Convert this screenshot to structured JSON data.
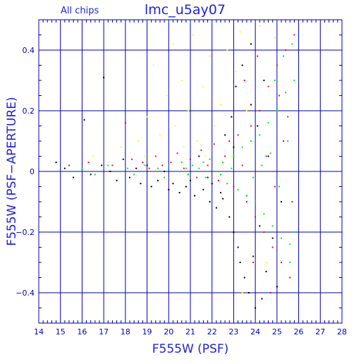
{
  "chart_data": {
    "type": "scatter",
    "title": "lmc_u5ay07",
    "subtitle": "All chips",
    "xlabel": "F555W (PSF)",
    "ylabel": "F555W (PSF−APERTURE)",
    "xlim": [
      14,
      28
    ],
    "ylim": [
      -0.5,
      0.5
    ],
    "x_ticks": [
      "14",
      "15",
      "16",
      "17",
      "18",
      "19",
      "20",
      "21",
      "22",
      "23",
      "24",
      "25",
      "26",
      "27",
      "28"
    ],
    "y_ticks": [
      "−0.4",
      "−0.2",
      "0",
      "0.2",
      "0.4"
    ],
    "grid": true,
    "series": [
      {
        "color": "#000000",
        "points": [
          [
            14.8,
            0.03
          ],
          [
            15.2,
            0.01
          ],
          [
            15.6,
            -0.02
          ],
          [
            16.1,
            0.17
          ],
          [
            16.4,
            -0.01
          ],
          [
            16.9,
            0.02
          ],
          [
            17.0,
            0.31
          ],
          [
            17.3,
            0.0
          ],
          [
            17.6,
            -0.03
          ],
          [
            17.9,
            0.04
          ],
          [
            18.2,
            -0.02
          ],
          [
            18.5,
            0.01
          ],
          [
            18.7,
            -0.04
          ],
          [
            19.0,
            0.02
          ],
          [
            19.2,
            -0.05
          ],
          [
            19.5,
            -0.03
          ],
          [
            19.8,
            0.0
          ],
          [
            20.0,
            -0.06
          ],
          [
            20.2,
            -0.04
          ],
          [
            20.5,
            -0.07
          ],
          [
            20.8,
            -0.05
          ],
          [
            21.0,
            -0.03
          ],
          [
            21.2,
            -0.08
          ],
          [
            21.4,
            0.05
          ],
          [
            21.6,
            -0.06
          ],
          [
            21.9,
            -0.1
          ],
          [
            22.0,
            -0.04
          ],
          [
            22.2,
            -0.12
          ],
          [
            22.4,
            -0.07
          ],
          [
            22.6,
            0.12
          ],
          [
            22.8,
            -0.15
          ],
          [
            22.9,
            0.18
          ],
          [
            23.0,
            -0.2
          ],
          [
            23.1,
            0.28
          ],
          [
            23.2,
            -0.25
          ],
          [
            23.3,
            -0.3
          ],
          [
            23.4,
            0.35
          ],
          [
            23.5,
            -0.35
          ],
          [
            23.6,
            -0.08
          ],
          [
            23.7,
            -0.4
          ],
          [
            23.8,
            0.22
          ],
          [
            23.9,
            -0.28
          ],
          [
            24.0,
            -0.45
          ],
          [
            24.1,
            0.15
          ],
          [
            24.2,
            -0.18
          ],
          [
            24.3,
            -0.42
          ],
          [
            24.5,
            -0.33
          ],
          [
            24.6,
            0.05
          ],
          [
            24.8,
            -0.22
          ],
          [
            25.0,
            -0.38
          ],
          [
            25.2,
            -0.1
          ],
          [
            22.5,
            -0.09
          ],
          [
            21.8,
            -0.02
          ],
          [
            20.9,
            -0.01
          ],
          [
            23.8,
            0.42
          ],
          [
            24.4,
            0.3
          ],
          [
            23.0,
            0.08
          ]
        ]
      },
      {
        "color": "#ee1111",
        "points": [
          [
            15.4,
            0.02
          ],
          [
            16.3,
            0.03
          ],
          [
            17.4,
            0.02
          ],
          [
            18.0,
            0.16
          ],
          [
            18.3,
            0.04
          ],
          [
            18.8,
            0.03
          ],
          [
            19.1,
            0.01
          ],
          [
            19.4,
            0.05
          ],
          [
            19.7,
            0.02
          ],
          [
            20.1,
            0.03
          ],
          [
            20.4,
            0.06
          ],
          [
            20.7,
            0.01
          ],
          [
            21.0,
            0.04
          ],
          [
            21.3,
            -0.02
          ],
          [
            21.5,
            0.07
          ],
          [
            21.8,
            0.02
          ],
          [
            22.1,
            0.09
          ],
          [
            22.3,
            -0.03
          ],
          [
            22.6,
            0.05
          ],
          [
            22.8,
            0.1
          ],
          [
            23.0,
            -0.05
          ],
          [
            23.2,
            0.12
          ],
          [
            23.4,
            0.02
          ],
          [
            23.6,
            -0.1
          ],
          [
            23.8,
            0.15
          ],
          [
            24.0,
            -0.15
          ],
          [
            24.2,
            0.2
          ],
          [
            24.4,
            -0.2
          ],
          [
            24.6,
            0.28
          ],
          [
            24.8,
            -0.25
          ],
          [
            25.0,
            0.35
          ],
          [
            25.2,
            -0.3
          ],
          [
            25.4,
            0.4
          ],
          [
            25.6,
            -0.35
          ],
          [
            25.8,
            0.45
          ],
          [
            24.5,
            0.05
          ],
          [
            24.9,
            -0.05
          ],
          [
            25.3,
            0.1
          ],
          [
            25.7,
            -0.1
          ],
          [
            23.5,
            0.3
          ],
          [
            24.1,
            0.38
          ],
          [
            25.1,
            0.25
          ],
          [
            25.5,
            0.18
          ],
          [
            24.7,
            -0.4
          ],
          [
            23.9,
            -0.3
          ]
        ]
      },
      {
        "color": "#ffff00",
        "points": [
          [
            16.5,
            0.05
          ],
          [
            17.8,
            0.08
          ],
          [
            18.6,
            0.1
          ],
          [
            19.0,
            0.18
          ],
          [
            19.3,
            0.35
          ],
          [
            19.6,
            0.12
          ],
          [
            19.9,
            0.25
          ],
          [
            20.2,
            0.42
          ],
          [
            20.3,
            0.15
          ],
          [
            20.6,
            0.3
          ],
          [
            20.9,
            0.2
          ],
          [
            21.1,
            0.45
          ],
          [
            21.3,
            0.1
          ],
          [
            21.6,
            0.28
          ],
          [
            21.9,
            0.38
          ],
          [
            22.1,
            0.15
          ],
          [
            22.4,
            0.22
          ],
          [
            22.7,
            0.4
          ],
          [
            22.9,
            0.05
          ],
          [
            23.1,
            0.33
          ],
          [
            23.3,
            0.46
          ],
          [
            23.6,
            0.2
          ],
          [
            23.9,
            0.1
          ],
          [
            24.2,
            0.48
          ],
          [
            24.5,
            -0.3
          ],
          [
            24.9,
            0.44
          ],
          [
            23.4,
            -0.4
          ],
          [
            20.7,
            0.08
          ],
          [
            21.7,
            0.05
          ],
          [
            18.9,
            0.05
          ]
        ]
      },
      {
        "color": "#00ee00",
        "points": [
          [
            16.0,
            0.01
          ],
          [
            16.6,
            -0.01
          ],
          [
            17.2,
            0.02
          ],
          [
            17.7,
            0.0
          ],
          [
            18.1,
            0.01
          ],
          [
            18.4,
            -0.01
          ],
          [
            18.9,
            0.02
          ],
          [
            19.2,
            0.0
          ],
          [
            19.5,
            0.01
          ],
          [
            19.8,
            -0.02
          ],
          [
            20.0,
            0.02
          ],
          [
            20.3,
            0.0
          ],
          [
            20.6,
            0.03
          ],
          [
            20.9,
            -0.01
          ],
          [
            21.1,
            0.02
          ],
          [
            21.4,
            0.01
          ],
          [
            21.7,
            -0.02
          ],
          [
            21.9,
            0.04
          ],
          [
            22.2,
            0.0
          ],
          [
            22.5,
            0.03
          ],
          [
            22.7,
            -0.04
          ],
          [
            23.0,
            0.05
          ],
          [
            23.2,
            -0.06
          ],
          [
            23.4,
            0.08
          ],
          [
            23.6,
            -0.08
          ],
          [
            23.8,
            0.1
          ],
          [
            24.0,
            -0.1
          ],
          [
            24.2,
            0.12
          ],
          [
            24.4,
            -0.14
          ],
          [
            24.6,
            0.16
          ],
          [
            24.8,
            -0.18
          ],
          [
            25.0,
            0.2
          ],
          [
            25.2,
            -0.22
          ],
          [
            25.4,
            0.26
          ],
          [
            25.6,
            -0.24
          ],
          [
            25.8,
            0.3
          ],
          [
            25.9,
            -0.2
          ],
          [
            25.5,
            0.1
          ],
          [
            25.1,
            -0.05
          ],
          [
            24.7,
            0.06
          ],
          [
            24.3,
            0.02
          ],
          [
            23.9,
            -0.02
          ],
          [
            25.3,
            0.38
          ],
          [
            25.7,
            0.42
          ],
          [
            25.6,
            -0.3
          ],
          [
            24.9,
            0.3
          ],
          [
            22.9,
            0.01
          ],
          [
            22.4,
            -0.01
          ],
          [
            21.6,
            0.03
          ],
          [
            20.8,
            0.01
          ]
        ]
      }
    ]
  }
}
